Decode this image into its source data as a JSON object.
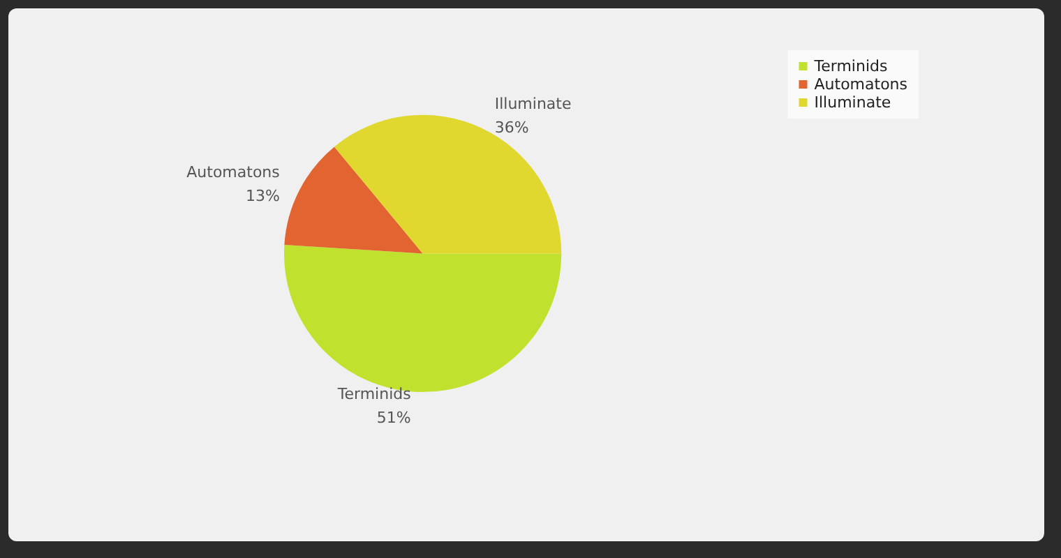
{
  "chart_data": {
    "type": "pie",
    "categories": [
      "Terminids",
      "Automatons",
      "Illuminate"
    ],
    "values": [
      51,
      13,
      36
    ],
    "colors": [
      "#c0e22e",
      "#e26430",
      "#e0d82e"
    ],
    "value_labels": [
      "51%",
      "13%",
      "36%"
    ],
    "legend": "top right"
  }
}
